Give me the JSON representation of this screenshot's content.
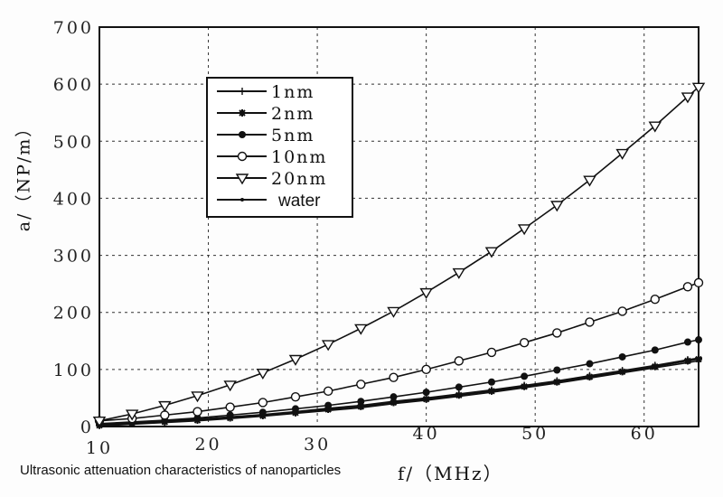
{
  "chart_data": {
    "type": "line",
    "caption": "Ultrasonic attenuation characteristics of nanoparticles",
    "xlabel": "f/（MHz）",
    "ylabel": "a/（NP/m）",
    "xlim": [
      10,
      65
    ],
    "ylim": [
      0,
      700
    ],
    "xticks": [
      10,
      20,
      30,
      40,
      50,
      60
    ],
    "yticks": [
      0,
      100,
      200,
      300,
      400,
      500,
      600,
      700
    ],
    "grid": true,
    "legend": "top-left",
    "x": [
      10,
      13,
      16,
      19,
      22,
      25,
      28,
      31,
      34,
      37,
      40,
      43,
      46,
      49,
      52,
      55,
      58,
      61,
      64,
      65
    ],
    "series": [
      {
        "name": "1nm",
        "marker": "plus",
        "values": [
          3,
          6,
          9,
          13,
          17,
          21,
          26,
          32,
          37,
          44,
          50,
          57,
          64,
          72,
          80,
          89,
          98,
          107,
          117,
          120
        ]
      },
      {
        "name": "2nm",
        "marker": "star",
        "values": [
          2,
          5,
          8,
          11,
          15,
          19,
          24,
          30,
          35,
          42,
          48,
          55,
          62,
          70,
          78,
          87,
          96,
          105,
          115,
          118
        ]
      },
      {
        "name": "5nm",
        "marker": "filled-circle",
        "values": [
          5,
          8,
          11,
          15,
          20,
          25,
          31,
          37,
          44,
          52,
          60,
          69,
          78,
          88,
          99,
          110,
          122,
          134,
          148,
          152
        ]
      },
      {
        "name": "10nm",
        "marker": "open-circle",
        "values": [
          10,
          14,
          20,
          26,
          34,
          42,
          52,
          62,
          74,
          86,
          100,
          115,
          130,
          147,
          164,
          183,
          202,
          223,
          245,
          252
        ]
      },
      {
        "name": "20nm",
        "marker": "open-triangle-down",
        "values": [
          10,
          22,
          37,
          54,
          73,
          94,
          118,
          144,
          172,
          202,
          235,
          270,
          307,
          347,
          388,
          432,
          479,
          527,
          578,
          595
        ]
      },
      {
        "name": "water",
        "marker": "dot",
        "values": [
          1,
          4,
          7,
          10,
          14,
          18,
          23,
          28,
          33,
          40,
          46,
          53,
          60,
          68,
          76,
          85,
          94,
          103,
          112,
          115
        ]
      }
    ]
  }
}
